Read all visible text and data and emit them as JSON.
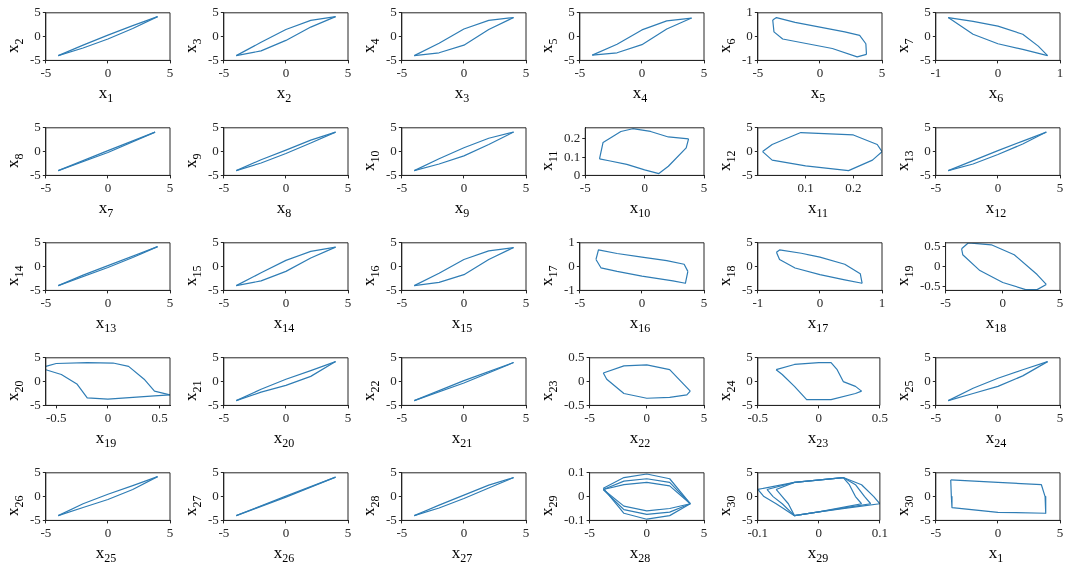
{
  "chart_data": [
    {
      "type": "line",
      "xlabel": "x$_{1}$",
      "ylabel": "x$_{2}$",
      "xlim": [
        -5,
        5
      ],
      "ylim": [
        -5,
        5
      ],
      "xticks": [
        -5,
        0,
        5
      ],
      "yticks": [
        -5,
        0,
        5
      ],
      "series": [
        {
          "color": "#2f7db5",
          "x": [
            -4,
            -2,
            0,
            2,
            4
          ],
          "values": [
            -4,
            -1.8,
            0.3,
            2.3,
            4.2
          ]
        },
        {
          "color": "#2f7db5",
          "x": [
            -4,
            -2,
            0,
            2,
            4
          ],
          "values": [
            -4,
            -2.4,
            -0.5,
            1.7,
            4.2
          ]
        }
      ]
    },
    {
      "type": "line",
      "xlabel": "x$_{2}$",
      "ylabel": "x$_{3}$",
      "xlim": [
        -5,
        5
      ],
      "ylim": [
        -5,
        5
      ],
      "xticks": [
        -5,
        0,
        5
      ],
      "yticks": [
        -5,
        0,
        5
      ],
      "series": [
        {
          "color": "#2f7db5",
          "x": [
            -4,
            -2,
            0,
            2,
            4
          ],
          "values": [
            -4,
            -1.2,
            1.5,
            3.4,
            4.2
          ]
        },
        {
          "color": "#2f7db5",
          "x": [
            -4,
            -2,
            0,
            2,
            4
          ],
          "values": [
            -4,
            -3,
            -0.8,
            2,
            4.2
          ]
        }
      ]
    },
    {
      "type": "line",
      "xlabel": "x$_{3}$",
      "ylabel": "x$_{4}$",
      "xlim": [
        -5,
        5
      ],
      "ylim": [
        -5,
        5
      ],
      "xticks": [
        -5,
        0,
        5
      ],
      "yticks": [
        -5,
        0,
        5
      ],
      "series": [
        {
          "color": "#2f7db5",
          "x": [
            -4,
            -2,
            0,
            2,
            4
          ],
          "values": [
            -4,
            -1.4,
            1.6,
            3.4,
            4
          ]
        },
        {
          "color": "#2f7db5",
          "x": [
            -4,
            -2,
            0,
            2,
            4
          ],
          "values": [
            -4,
            -3.4,
            -1.8,
            1.5,
            4
          ]
        }
      ]
    },
    {
      "type": "line",
      "xlabel": "x$_{4}$",
      "ylabel": "x$_{5}$",
      "xlim": [
        -5,
        5
      ],
      "ylim": [
        -5,
        5
      ],
      "xticks": [
        -5,
        0,
        5
      ],
      "yticks": [
        -5,
        0,
        5
      ],
      "series": [
        {
          "color": "#2f7db5",
          "x": [
            -4,
            -2,
            0,
            2,
            4
          ],
          "values": [
            -3.9,
            -1.6,
            1.4,
            3.3,
            3.9
          ]
        },
        {
          "color": "#2f7db5",
          "x": [
            -4,
            -2,
            0,
            2,
            4
          ],
          "values": [
            -3.9,
            -3.4,
            -1.7,
            1.6,
            3.9
          ]
        }
      ]
    },
    {
      "type": "line",
      "xlabel": "x$_{5}$",
      "ylabel": "x$_{6}$",
      "xlim": [
        -5,
        5
      ],
      "ylim": [
        -1,
        1
      ],
      "xticks": [
        -5,
        0,
        5
      ],
      "yticks": [
        -1,
        0,
        1
      ],
      "series": [
        {
          "color": "#2f7db5",
          "x": [
            -3.8,
            -3.5,
            -2,
            0,
            2,
            3.2,
            3.7,
            3.75
          ],
          "values": [
            0.7,
            0.8,
            0.6,
            0.4,
            0.2,
            0.05,
            -0.3,
            -0.75
          ]
        },
        {
          "color": "#2f7db5",
          "x": [
            -3.8,
            -3.7,
            -3,
            -1,
            1,
            3,
            3.75
          ],
          "values": [
            0.7,
            0.2,
            -0.1,
            -0.3,
            -0.5,
            -0.85,
            -0.75
          ]
        }
      ]
    },
    {
      "type": "line",
      "xlabel": "x$_{6}$",
      "ylabel": "x$_{7}$",
      "xlim": [
        -1,
        1
      ],
      "ylim": [
        -5,
        5
      ],
      "xticks": [
        -1,
        0,
        1
      ],
      "yticks": [
        -5,
        0,
        5
      ],
      "series": [
        {
          "color": "#2f7db5",
          "x": [
            -0.8,
            -0.4,
            0,
            0.4,
            0.65,
            0.8
          ],
          "values": [
            4,
            3.2,
            2.2,
            0.5,
            -2,
            -4
          ]
        },
        {
          "color": "#2f7db5",
          "x": [
            -0.8,
            -0.4,
            0,
            0.4,
            0.8
          ],
          "values": [
            4,
            0.5,
            -1.5,
            -2.7,
            -4
          ]
        }
      ]
    },
    {
      "type": "line",
      "xlabel": "x$_{7}$",
      "ylabel": "x$_{8}$",
      "xlim": [
        -5,
        5
      ],
      "ylim": [
        -5,
        5
      ],
      "xticks": [
        -5,
        0,
        5
      ],
      "yticks": [
        -5,
        0,
        5
      ],
      "series": [
        {
          "color": "#2f7db5",
          "x": [
            -4,
            0,
            3.8
          ],
          "values": [
            -4,
            0.2,
            4.1
          ]
        },
        {
          "color": "#2f7db5",
          "x": [
            -4,
            0,
            3.8
          ],
          "values": [
            -4,
            -0.2,
            4.1
          ]
        }
      ]
    },
    {
      "type": "line",
      "xlabel": "x$_{8}$",
      "ylabel": "x$_{9}$",
      "xlim": [
        -5,
        5
      ],
      "ylim": [
        -5,
        5
      ],
      "xticks": [
        -5,
        0,
        5
      ],
      "yticks": [
        -5,
        0,
        5
      ],
      "series": [
        {
          "color": "#2f7db5",
          "x": [
            -4,
            -2,
            0,
            2,
            4
          ],
          "values": [
            -4,
            -1.7,
            0.3,
            2.4,
            4.1
          ]
        },
        {
          "color": "#2f7db5",
          "x": [
            -4,
            -2,
            0,
            2,
            4
          ],
          "values": [
            -4,
            -2.4,
            -0.4,
            1.8,
            4.1
          ]
        }
      ]
    },
    {
      "type": "line",
      "xlabel": "x$_{9}$",
      "ylabel": "x$_{10}$",
      "xlim": [
        -5,
        5
      ],
      "ylim": [
        -5,
        5
      ],
      "xticks": [
        -5,
        0,
        5
      ],
      "yticks": [
        -5,
        0,
        5
      ],
      "series": [
        {
          "color": "#2f7db5",
          "x": [
            -4,
            -2,
            0,
            2,
            4
          ],
          "values": [
            -4,
            -1.5,
            0.8,
            2.8,
            4.1
          ]
        },
        {
          "color": "#2f7db5",
          "x": [
            -4,
            -2,
            0,
            2,
            4
          ],
          "values": [
            -4,
            -2.6,
            -0.9,
            1.5,
            4.1
          ]
        }
      ]
    },
    {
      "type": "line",
      "xlabel": "x$_{10}$",
      "ylabel": "x$_{11}$",
      "xlim": [
        -5,
        5
      ],
      "ylim": [
        0,
        0.26
      ],
      "xticks": [
        -5,
        0,
        5
      ],
      "yticks": [
        0,
        0.1,
        0.2
      ],
      "series": [
        {
          "color": "#2f7db5",
          "x": [
            -3.8,
            -3.5,
            -2,
            -1,
            0.5,
            2,
            3.7
          ],
          "values": [
            0.09,
            0.18,
            0.24,
            0.255,
            0.24,
            0.21,
            0.2
          ]
        },
        {
          "color": "#2f7db5",
          "x": [
            -3.8,
            -3,
            -1.5,
            0,
            1.2,
            2,
            3.5,
            3.7
          ],
          "values": [
            0.09,
            0.08,
            0.06,
            0.03,
            0.01,
            0.05,
            0.15,
            0.2
          ]
        }
      ]
    },
    {
      "type": "line",
      "xlabel": "x$_{11}$",
      "ylabel": "x$_{12}$",
      "xlim": [
        0,
        0.26
      ],
      "ylim": [
        -5,
        5
      ],
      "xticks": [
        0.1,
        0.2
      ],
      "yticks": [
        -5,
        0,
        5
      ],
      "series": [
        {
          "color": "#2f7db5",
          "x": [
            0.01,
            0.03,
            0.09,
            0.2,
            0.25,
            0.26
          ],
          "values": [
            0,
            1.5,
            4,
            3.5,
            1.5,
            0
          ]
        },
        {
          "color": "#2f7db5",
          "x": [
            0.01,
            0.03,
            0.1,
            0.19,
            0.24,
            0.26
          ],
          "values": [
            0,
            -1.8,
            -3,
            -4,
            -1.8,
            0
          ]
        }
      ]
    },
    {
      "type": "line",
      "xlabel": "x$_{12}$",
      "ylabel": "x$_{13}$",
      "xlim": [
        -5,
        5
      ],
      "ylim": [
        -5,
        5
      ],
      "xticks": [
        -5,
        0,
        5
      ],
      "yticks": [
        -5,
        0,
        5
      ],
      "series": [
        {
          "color": "#2f7db5",
          "x": [
            -4,
            -2,
            0,
            2,
            3.9
          ],
          "values": [
            -4,
            -1.9,
            0.2,
            2.2,
            4.1
          ]
        },
        {
          "color": "#2f7db5",
          "x": [
            -4,
            -2,
            0,
            2,
            3.9
          ],
          "values": [
            -4,
            -2.6,
            -0.6,
            1.6,
            4.1
          ]
        }
      ]
    },
    {
      "type": "line",
      "xlabel": "x$_{13}$",
      "ylabel": "x$_{14}$",
      "xlim": [
        -5,
        5
      ],
      "ylim": [
        -5,
        5
      ],
      "xticks": [
        -5,
        0,
        5
      ],
      "yticks": [
        -5,
        0,
        5
      ],
      "series": [
        {
          "color": "#2f7db5",
          "x": [
            -4,
            -2,
            0,
            4
          ],
          "values": [
            -4,
            -1.8,
            0.2,
            4.2
          ]
        },
        {
          "color": "#2f7db5",
          "x": [
            -4,
            0,
            2,
            4
          ],
          "values": [
            -4,
            -0.2,
            1.9,
            4.2
          ]
        }
      ]
    },
    {
      "type": "line",
      "xlabel": "x$_{14}$",
      "ylabel": "x$_{15}$",
      "xlim": [
        -5,
        5
      ],
      "ylim": [
        -5,
        5
      ],
      "xticks": [
        -5,
        0,
        5
      ],
      "yticks": [
        -5,
        0,
        5
      ],
      "series": [
        {
          "color": "#2f7db5",
          "x": [
            -4,
            -2,
            0,
            2,
            4
          ],
          "values": [
            -4,
            -1.3,
            1.3,
            3.2,
            4.1
          ]
        },
        {
          "color": "#2f7db5",
          "x": [
            -4,
            -2,
            0,
            2,
            4
          ],
          "values": [
            -4,
            -3,
            -1,
            1.8,
            4.1
          ]
        }
      ]
    },
    {
      "type": "line",
      "xlabel": "x$_{15}$",
      "ylabel": "x$_{16}$",
      "xlim": [
        -5,
        5
      ],
      "ylim": [
        -5,
        5
      ],
      "xticks": [
        -5,
        0,
        5
      ],
      "yticks": [
        -5,
        0,
        5
      ],
      "series": [
        {
          "color": "#2f7db5",
          "x": [
            -4,
            -2,
            0,
            2,
            4
          ],
          "values": [
            -4,
            -1.4,
            1.5,
            3.3,
            4
          ]
        },
        {
          "color": "#2f7db5",
          "x": [
            -4,
            -2,
            0,
            2,
            4
          ],
          "values": [
            -4,
            -3.3,
            -1.7,
            1.5,
            4
          ]
        }
      ]
    },
    {
      "type": "line",
      "xlabel": "x$_{16}$",
      "ylabel": "x$_{17}$",
      "xlim": [
        -5,
        5
      ],
      "ylim": [
        -1,
        1
      ],
      "xticks": [
        -5,
        0,
        5
      ],
      "yticks": [
        -1,
        0,
        1
      ],
      "series": [
        {
          "color": "#2f7db5",
          "x": [
            -3.7,
            -3.5,
            -2,
            0,
            2,
            3.4,
            3.7
          ],
          "values": [
            0.3,
            0.7,
            0.55,
            0.4,
            0.25,
            0.1,
            -0.2
          ]
        },
        {
          "color": "#2f7db5",
          "x": [
            -3.7,
            -3.3,
            -2,
            0,
            2.5,
            3.5,
            3.7
          ],
          "values": [
            0.3,
            -0.05,
            -0.2,
            -0.4,
            -0.6,
            -0.7,
            -0.2
          ]
        }
      ]
    },
    {
      "type": "line",
      "xlabel": "x$_{17}$",
      "ylabel": "x$_{18}$",
      "xlim": [
        -1,
        1
      ],
      "ylim": [
        -5,
        5
      ],
      "xticks": [
        -1,
        0,
        1
      ],
      "yticks": [
        -5,
        0,
        5
      ],
      "series": [
        {
          "color": "#2f7db5",
          "x": [
            -0.7,
            -0.65,
            -0.3,
            0,
            0.4,
            0.65,
            0.68
          ],
          "values": [
            3,
            3.5,
            2.8,
            2,
            0.5,
            -1.5,
            -3.5
          ]
        },
        {
          "color": "#2f7db5",
          "x": [
            -0.7,
            -0.65,
            -0.4,
            0,
            0.4,
            0.68
          ],
          "values": [
            3,
            1.5,
            -0.3,
            -1.7,
            -2.8,
            -3.5
          ]
        }
      ]
    },
    {
      "type": "line",
      "xlabel": "x$_{18}$",
      "ylabel": "x$_{19}$",
      "xlim": [
        -5,
        5
      ],
      "ylim": [
        -0.6,
        0.6
      ],
      "xticks": [
        -5,
        0,
        5
      ],
      "yticks": [
        -0.5,
        0,
        0.5
      ],
      "series": [
        {
          "color": "#2f7db5",
          "x": [
            -3.6,
            -3,
            -1,
            1,
            3,
            3.8
          ],
          "values": [
            0.45,
            0.6,
            0.55,
            0.3,
            -0.2,
            -0.45
          ]
        },
        {
          "color": "#2f7db5",
          "x": [
            -3.6,
            -3.5,
            -2,
            0,
            2,
            3,
            3.8
          ],
          "values": [
            0.45,
            0.3,
            -0.1,
            -0.4,
            -0.58,
            -0.58,
            -0.45
          ]
        }
      ]
    },
    {
      "type": "line",
      "xlabel": "x$_{19}$",
      "ylabel": "x$_{20}$",
      "xlim": [
        -0.6,
        0.6
      ],
      "ylim": [
        -5,
        5
      ],
      "xticks": [
        -0.5,
        0,
        0.5
      ],
      "yticks": [
        -5,
        0,
        5
      ],
      "series": [
        {
          "color": "#2f7db5",
          "x": [
            -0.6,
            -0.5,
            -0.2,
            0.05,
            0.2,
            0.35,
            0.45,
            0.6
          ],
          "values": [
            3.2,
            3.8,
            4,
            3.9,
            3.2,
            0.5,
            -2,
            -2.8
          ]
        },
        {
          "color": "#2f7db5",
          "x": [
            -0.6,
            -0.45,
            -0.3,
            -0.2,
            0,
            0.45,
            0.6
          ],
          "values": [
            2.5,
            1.5,
            -0.5,
            -3.4,
            -3.7,
            -3,
            -2.8
          ]
        }
      ]
    },
    {
      "type": "line",
      "xlabel": "x$_{20}$",
      "ylabel": "x$_{21}$",
      "xlim": [
        -5,
        5
      ],
      "ylim": [
        -5,
        5
      ],
      "xticks": [
        -5,
        0,
        5
      ],
      "yticks": [
        -5,
        0,
        5
      ],
      "series": [
        {
          "color": "#2f7db5",
          "x": [
            -4,
            -2,
            0,
            2,
            4
          ],
          "values": [
            -4,
            -1.6,
            0.5,
            2.3,
            4.2
          ]
        },
        {
          "color": "#2f7db5",
          "x": [
            -4,
            -2,
            0,
            2,
            4
          ],
          "values": [
            -4,
            -2.2,
            -0.8,
            1.1,
            4.2
          ]
        }
      ]
    },
    {
      "type": "line",
      "xlabel": "x$_{21}$",
      "ylabel": "x$_{22}$",
      "xlim": [
        -5,
        5
      ],
      "ylim": [
        -5,
        5
      ],
      "xticks": [
        -5,
        0,
        5
      ],
      "yticks": [
        -5,
        0,
        5
      ],
      "series": [
        {
          "color": "#2f7db5",
          "x": [
            -4,
            0,
            4
          ],
          "values": [
            -4,
            0.2,
            4
          ]
        },
        {
          "color": "#2f7db5",
          "x": [
            -4,
            0,
            4
          ],
          "values": [
            -4,
            -0.3,
            4
          ]
        }
      ]
    },
    {
      "type": "line",
      "xlabel": "x$_{22}$",
      "ylabel": "x$_{23}$",
      "xlim": [
        -5,
        5
      ],
      "ylim": [
        -0.5,
        0.5
      ],
      "xticks": [
        -5,
        0,
        5
      ],
      "yticks": [
        -0.5,
        0,
        0.5
      ],
      "series": [
        {
          "color": "#2f7db5",
          "x": [
            -3.8,
            -2,
            0,
            2,
            3.8
          ],
          "values": [
            0.18,
            0.33,
            0.35,
            0.25,
            -0.2
          ]
        },
        {
          "color": "#2f7db5",
          "x": [
            -3.8,
            -3.5,
            -2,
            0,
            2,
            3.5,
            3.8
          ],
          "values": [
            0.18,
            0.05,
            -0.25,
            -0.35,
            -0.33,
            -0.28,
            -0.2
          ]
        }
      ]
    },
    {
      "type": "line",
      "xlabel": "x$_{23}$",
      "ylabel": "x$_{24}$",
      "xlim": [
        -0.5,
        0.5
      ],
      "ylim": [
        -5,
        5
      ],
      "xticks": [
        -0.5,
        0,
        0.5
      ],
      "yticks": [
        -5,
        0,
        5
      ],
      "series": [
        {
          "color": "#2f7db5",
          "x": [
            -0.35,
            -0.2,
            0,
            0.1,
            0.15,
            0.2,
            0.3,
            0.35
          ],
          "values": [
            2.5,
            3.6,
            4,
            4,
            2.5,
            0,
            -1,
            -2
          ]
        },
        {
          "color": "#2f7db5",
          "x": [
            -0.35,
            -0.3,
            -0.2,
            -0.1,
            0.1,
            0.3,
            0.35
          ],
          "values": [
            2.5,
            1.5,
            -1,
            -3.8,
            -3.8,
            -2.5,
            -2
          ]
        }
      ]
    },
    {
      "type": "line",
      "xlabel": "x$_{24}$",
      "ylabel": "x$_{25}$",
      "xlim": [
        -5,
        5
      ],
      "ylim": [
        -5,
        5
      ],
      "xticks": [
        -5,
        0,
        5
      ],
      "yticks": [
        -5,
        0,
        5
      ],
      "series": [
        {
          "color": "#2f7db5",
          "x": [
            -4,
            -2,
            0,
            2,
            4
          ],
          "values": [
            -4,
            -1.4,
            0.7,
            2.5,
            4.2
          ]
        },
        {
          "color": "#2f7db5",
          "x": [
            -4,
            -2,
            0,
            2,
            4
          ],
          "values": [
            -4,
            -2.5,
            -1,
            1.2,
            4.2
          ]
        }
      ]
    },
    {
      "type": "line",
      "xlabel": "x$_{25}$",
      "ylabel": "x$_{26}$",
      "xlim": [
        -5,
        5
      ],
      "ylim": [
        -5,
        5
      ],
      "xticks": [
        -5,
        0,
        5
      ],
      "yticks": [
        -5,
        0,
        5
      ],
      "series": [
        {
          "color": "#2f7db5",
          "x": [
            -4,
            -2,
            0,
            2,
            4
          ],
          "values": [
            -4,
            -1.5,
            0.5,
            2.3,
            4.2
          ]
        },
        {
          "color": "#2f7db5",
          "x": [
            -4,
            -2,
            0,
            2,
            4
          ],
          "values": [
            -4,
            -2.3,
            -0.6,
            1.5,
            4.2
          ]
        }
      ]
    },
    {
      "type": "line",
      "xlabel": "x$_{26}$",
      "ylabel": "x$_{27}$",
      "xlim": [
        -5,
        5
      ],
      "ylim": [
        -5,
        5
      ],
      "xticks": [
        -5,
        0,
        5
      ],
      "yticks": [
        -5,
        0,
        5
      ],
      "series": [
        {
          "color": "#2f7db5",
          "x": [
            -4,
            0,
            4
          ],
          "values": [
            -4,
            0.1,
            4.1
          ]
        },
        {
          "color": "#2f7db5",
          "x": [
            -4,
            0,
            4
          ],
          "values": [
            -4,
            -0.1,
            4.1
          ]
        }
      ]
    },
    {
      "type": "line",
      "xlabel": "x$_{27}$",
      "ylabel": "x$_{28}$",
      "xlim": [
        -5,
        5
      ],
      "ylim": [
        -5,
        5
      ],
      "xticks": [
        -5,
        0,
        5
      ],
      "yticks": [
        -5,
        0,
        5
      ],
      "series": [
        {
          "color": "#2f7db5",
          "x": [
            -4,
            -2,
            0,
            2,
            4
          ],
          "values": [
            -4,
            -1.8,
            0.3,
            2.4,
            4
          ]
        },
        {
          "color": "#2f7db5",
          "x": [
            -4,
            -2,
            0,
            2,
            4
          ],
          "values": [
            -4,
            -2.4,
            -0.4,
            1.8,
            4
          ]
        }
      ]
    },
    {
      "type": "line",
      "xlabel": "x$_{28}$",
      "ylabel": "x$_{29}$",
      "xlim": [
        -5,
        5
      ],
      "ylim": [
        -0.1,
        0.1
      ],
      "xticks": [
        -5,
        0,
        5
      ],
      "yticks": [
        -0.1,
        0,
        0.1
      ],
      "series": [
        {
          "color": "#2f7db5",
          "x": [
            -3.8,
            -2,
            0,
            2,
            3.8
          ],
          "values": [
            0.03,
            0.05,
            0.06,
            0.045,
            -0.03
          ]
        },
        {
          "color": "#2f7db5",
          "x": [
            -3.8,
            -2,
            0,
            2,
            3.8
          ],
          "values": [
            0.03,
            -0.04,
            -0.06,
            -0.05,
            -0.03
          ]
        },
        {
          "color": "#2f7db5",
          "x": [
            -3.8,
            -2,
            0,
            2,
            3.8
          ],
          "values": [
            0.03,
            0.065,
            0.075,
            0.06,
            -0.03
          ]
        },
        {
          "color": "#2f7db5",
          "x": [
            -3.8,
            -2,
            0,
            2,
            3.8
          ],
          "values": [
            0.03,
            -0.055,
            -0.075,
            -0.065,
            -0.03
          ]
        },
        {
          "color": "#2f7db5",
          "x": [
            -3.8,
            -2,
            0,
            2,
            3.8
          ],
          "values": [
            0.035,
            0.08,
            0.095,
            0.075,
            -0.03
          ]
        },
        {
          "color": "#2f7db5",
          "x": [
            -3.8,
            -2,
            0,
            2,
            3.8
          ],
          "values": [
            0.035,
            -0.07,
            -0.095,
            -0.08,
            -0.03
          ]
        }
      ]
    },
    {
      "type": "line",
      "xlabel": "x$_{29}$",
      "ylabel": "x$_{30}$",
      "xlim": [
        -0.1,
        0.1
      ],
      "ylim": [
        -5,
        5
      ],
      "xticks": [
        -0.1,
        0,
        0.1
      ],
      "yticks": [
        -5,
        0,
        5
      ],
      "series": [
        {
          "color": "#2f7db5",
          "x": [
            -0.07,
            -0.04,
            0.04,
            0.05,
            0.06,
            0.07
          ],
          "values": [
            1.5,
            3,
            4,
            2.5,
            0,
            -1.5
          ]
        },
        {
          "color": "#2f7db5",
          "x": [
            -0.07,
            -0.06,
            -0.05,
            -0.04,
            0,
            0.05,
            0.07
          ],
          "values": [
            1.5,
            0,
            -1.5,
            -4,
            -3.2,
            -2,
            -1.5
          ]
        },
        {
          "color": "#2f7db5",
          "x": [
            -0.085,
            -0.04,
            0.04,
            0.06,
            0.075,
            0.085
          ],
          "values": [
            1.5,
            3,
            4,
            2.5,
            0,
            -1.5
          ]
        },
        {
          "color": "#2f7db5",
          "x": [
            -0.085,
            -0.075,
            -0.06,
            -0.04,
            0,
            0.06,
            0.085
          ],
          "values": [
            1.5,
            0,
            -1.5,
            -4,
            -3.2,
            -2,
            -1.5
          ]
        },
        {
          "color": "#2f7db5",
          "x": [
            -0.1,
            -0.04,
            0.04,
            0.07,
            0.09,
            0.1
          ],
          "values": [
            1.5,
            3,
            4,
            2.5,
            0,
            -1.5
          ]
        },
        {
          "color": "#2f7db5",
          "x": [
            -0.1,
            -0.09,
            -0.07,
            -0.04,
            0,
            0.07,
            0.1
          ],
          "values": [
            1.5,
            0,
            -1.5,
            -4,
            -3.2,
            -2,
            -1.5
          ]
        }
      ]
    },
    {
      "type": "line",
      "xlabel": "x$_{1}$",
      "ylabel": "x$_{30}$",
      "xlim": [
        -5,
        5
      ],
      "ylim": [
        -5,
        5
      ],
      "xticks": [
        -5,
        0,
        5
      ],
      "yticks": [
        -5,
        0,
        5
      ],
      "series": [
        {
          "color": "#2f7db5",
          "x": [
            -3.8,
            0,
            3.5,
            3.8,
            3.85
          ],
          "values": [
            3.5,
            3,
            2.5,
            0,
            -3.5
          ]
        },
        {
          "color": "#2f7db5",
          "x": [
            -3.8,
            -3.75,
            -3.7,
            0,
            3.85
          ],
          "values": [
            3.5,
            0,
            -2.3,
            -3.3,
            -3.5
          ]
        }
      ]
    }
  ]
}
